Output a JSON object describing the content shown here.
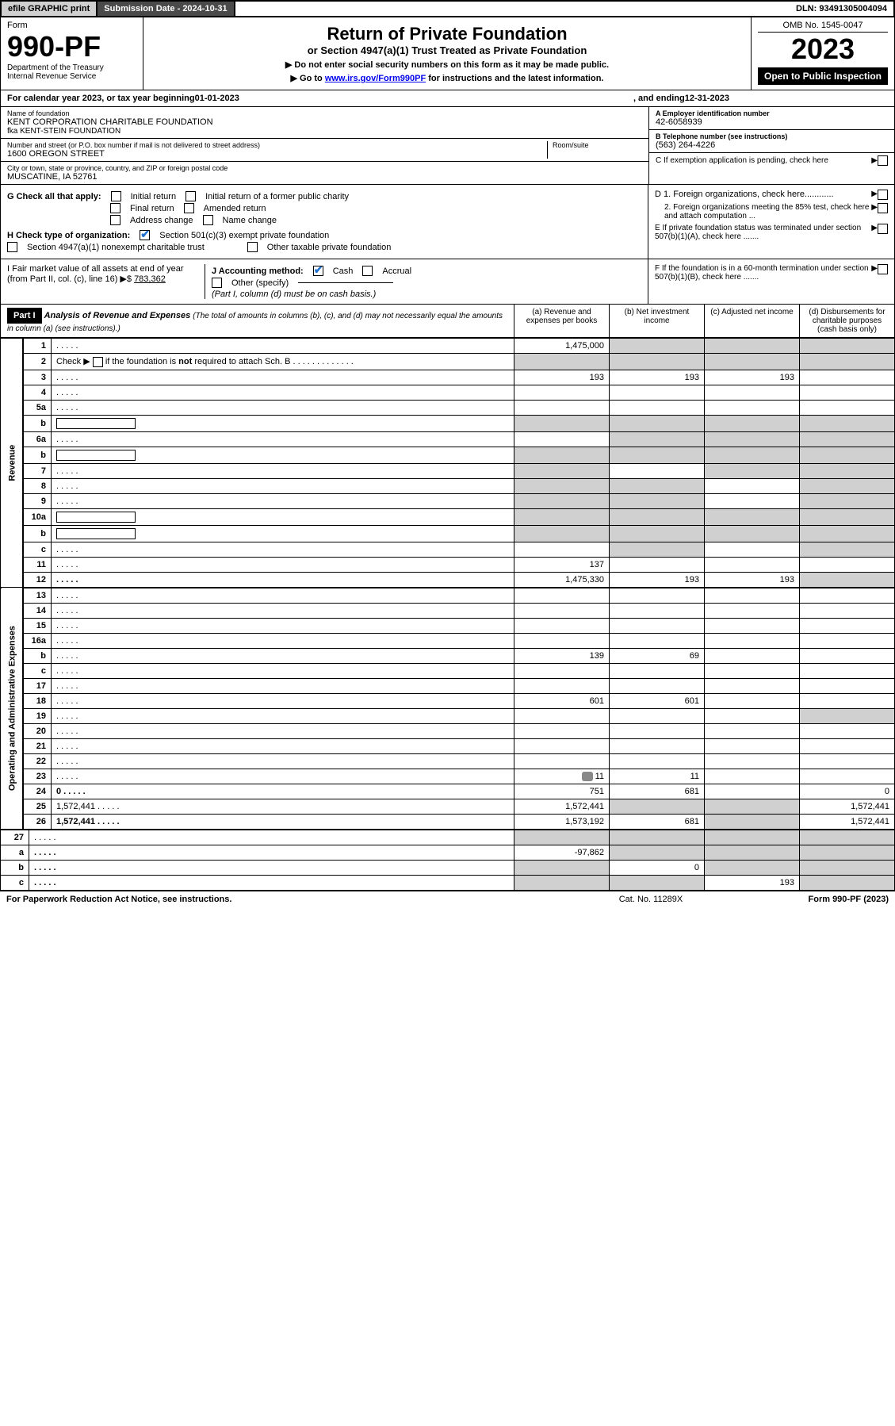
{
  "top": {
    "efile": "efile GRAPHIC print",
    "submission": "Submission Date - 2024-10-31",
    "dln": "DLN: 93491305004094"
  },
  "header": {
    "form_label": "Form",
    "form_num": "990-PF",
    "dept": "Department of the Treasury",
    "irs": "Internal Revenue Service",
    "title": "Return of Private Foundation",
    "subtitle": "or Section 4947(a)(1) Trust Treated as Private Foundation",
    "note1": "▶ Do not enter social security numbers on this form as it may be made public.",
    "note2_pre": "▶ Go to ",
    "note2_link": "www.irs.gov/Form990PF",
    "note2_post": " for instructions and the latest information.",
    "omb": "OMB No. 1545-0047",
    "year": "2023",
    "open": "Open to Public Inspection"
  },
  "calendar": {
    "pre": "For calendar year 2023, or tax year beginning ",
    "begin": "01-01-2023",
    "mid": ", and ending ",
    "end": "12-31-2023"
  },
  "foundation": {
    "name_label": "Name of foundation",
    "name": "KENT CORPORATION CHARITABLE FOUNDATION",
    "fka": "fka KENT-STEIN FOUNDATION",
    "addr_label": "Number and street (or P.O. box number if mail is not delivered to street address)",
    "addr": "1600 OREGON STREET",
    "room_label": "Room/suite",
    "city_label": "City or town, state or province, country, and ZIP or foreign postal code",
    "city": "MUSCATINE, IA  52761",
    "ein_label": "A Employer identification number",
    "ein": "42-6058939",
    "phone_label": "B Telephone number (see instructions)",
    "phone": "(563) 264-4226",
    "c_label": "C If exemption application is pending, check here"
  },
  "checks": {
    "g_label": "G Check all that apply:",
    "g_opts": [
      "Initial return",
      "Initial return of a former public charity",
      "Final return",
      "Amended return",
      "Address change",
      "Name change"
    ],
    "h_label": "H Check type of organization:",
    "h_501c3": "Section 501(c)(3) exempt private foundation",
    "h_4947": "Section 4947(a)(1) nonexempt charitable trust",
    "h_other": "Other taxable private foundation",
    "d1": "D 1. Foreign organizations, check here............",
    "d2": "2. Foreign organizations meeting the 85% test, check here and attach computation ...",
    "e": "E  If private foundation status was terminated under section 507(b)(1)(A), check here .......",
    "i_label": "I Fair market value of all assets at end of year (from Part II, col. (c), line 16) ▶$ ",
    "i_value": "783,362",
    "j_label": "J Accounting method:",
    "j_cash": "Cash",
    "j_accrual": "Accrual",
    "j_other": "Other (specify)",
    "j_note": "(Part I, column (d) must be on cash basis.)",
    "f": "F  If the foundation is in a 60-month termination under section 507(b)(1)(B), check here ......."
  },
  "part1": {
    "label": "Part I",
    "title": "Analysis of Revenue and Expenses",
    "sub": "(The total of amounts in columns (b), (c), and (d) may not necessarily equal the amounts in column (a) (see instructions).)",
    "col_a": "(a)   Revenue and expenses per books",
    "col_b": "(b)   Net investment income",
    "col_c": "(c)   Adjusted net income",
    "col_d": "(d)  Disbursements for charitable purposes (cash basis only)"
  },
  "sides": {
    "revenue": "Revenue",
    "expenses": "Operating and Administrative Expenses"
  },
  "rows": [
    {
      "n": "1",
      "d": "",
      "a": "1,475,000",
      "b": "",
      "c": "",
      "shade_bcd": true
    },
    {
      "n": "2",
      "d": "",
      "a": "",
      "b": "",
      "c": "",
      "shade_all": true,
      "html": true
    },
    {
      "n": "3",
      "d": "",
      "a": "193",
      "b": "193",
      "c": "193"
    },
    {
      "n": "4",
      "d": "",
      "a": "",
      "b": "",
      "c": ""
    },
    {
      "n": "5a",
      "d": "",
      "a": "",
      "b": "",
      "c": ""
    },
    {
      "n": "b",
      "d": "",
      "a": "",
      "b": "",
      "c": "",
      "shade_all": true,
      "inline_box": true
    },
    {
      "n": "6a",
      "d": "",
      "a": "",
      "b": "",
      "c": "",
      "shade_bcd": true
    },
    {
      "n": "b",
      "d": "",
      "a": "",
      "b": "",
      "c": "",
      "shade_all": true,
      "inline_box": true
    },
    {
      "n": "7",
      "d": "",
      "a": "",
      "b": "",
      "c": "",
      "shade_a": true,
      "shade_cd": true
    },
    {
      "n": "8",
      "d": "",
      "a": "",
      "b": "",
      "c": "",
      "shade_ab": true,
      "shade_d": true
    },
    {
      "n": "9",
      "d": "",
      "a": "",
      "b": "",
      "c": "",
      "shade_ab": true,
      "shade_d": true
    },
    {
      "n": "10a",
      "d": "",
      "a": "",
      "b": "",
      "c": "",
      "shade_all": true,
      "inline_box": true
    },
    {
      "n": "b",
      "d": "",
      "a": "",
      "b": "",
      "c": "",
      "shade_all": true,
      "inline_box": true
    },
    {
      "n": "c",
      "d": "",
      "a": "",
      "b": "",
      "c": "",
      "shade_b": true,
      "shade_d": true
    },
    {
      "n": "11",
      "d": "",
      "a": "137",
      "b": "",
      "c": ""
    },
    {
      "n": "12",
      "d": "",
      "a": "1,475,330",
      "b": "193",
      "c": "193",
      "bold": true,
      "shade_d": true
    }
  ],
  "exp_rows": [
    {
      "n": "13",
      "d": "",
      "a": "",
      "b": "",
      "c": ""
    },
    {
      "n": "14",
      "d": "",
      "a": "",
      "b": "",
      "c": ""
    },
    {
      "n": "15",
      "d": "",
      "a": "",
      "b": "",
      "c": ""
    },
    {
      "n": "16a",
      "d": "",
      "a": "",
      "b": "",
      "c": ""
    },
    {
      "n": "b",
      "d": "",
      "a": "139",
      "b": "69",
      "c": ""
    },
    {
      "n": "c",
      "d": "",
      "a": "",
      "b": "",
      "c": ""
    },
    {
      "n": "17",
      "d": "",
      "a": "",
      "b": "",
      "c": ""
    },
    {
      "n": "18",
      "d": "",
      "a": "601",
      "b": "601",
      "c": ""
    },
    {
      "n": "19",
      "d": "",
      "a": "",
      "b": "",
      "c": "",
      "shade_d": true
    },
    {
      "n": "20",
      "d": "",
      "a": "",
      "b": "",
      "c": ""
    },
    {
      "n": "21",
      "d": "",
      "a": "",
      "b": "",
      "c": ""
    },
    {
      "n": "22",
      "d": "",
      "a": "",
      "b": "",
      "c": ""
    },
    {
      "n": "23",
      "d": "",
      "a": "11",
      "b": "11",
      "c": "",
      "icon": true
    },
    {
      "n": "24",
      "d": "0",
      "a": "751",
      "b": "681",
      "c": "",
      "bold": true
    },
    {
      "n": "25",
      "d": "1,572,441",
      "a": "1,572,441",
      "b": "",
      "c": "",
      "shade_bc": true
    },
    {
      "n": "26",
      "d": "1,572,441",
      "a": "1,573,192",
      "b": "681",
      "c": "",
      "bold": true,
      "shade_c": true
    }
  ],
  "net_rows": [
    {
      "n": "27",
      "d": "",
      "a": "",
      "b": "",
      "c": "",
      "shade_all": true
    },
    {
      "n": "a",
      "d": "",
      "a": "-97,862",
      "b": "",
      "c": "",
      "bold": true,
      "shade_bcd": true
    },
    {
      "n": "b",
      "d": "",
      "a": "",
      "b": "0",
      "c": "",
      "bold": true,
      "shade_a": true,
      "shade_cd": true
    },
    {
      "n": "c",
      "d": "",
      "a": "",
      "b": "",
      "c": "193",
      "bold": true,
      "shade_ab": true,
      "shade_d": true
    }
  ],
  "footer": {
    "left": "For Paperwork Reduction Act Notice, see instructions.",
    "mid": "Cat. No. 11289X",
    "right": "Form 990-PF (2023)"
  }
}
